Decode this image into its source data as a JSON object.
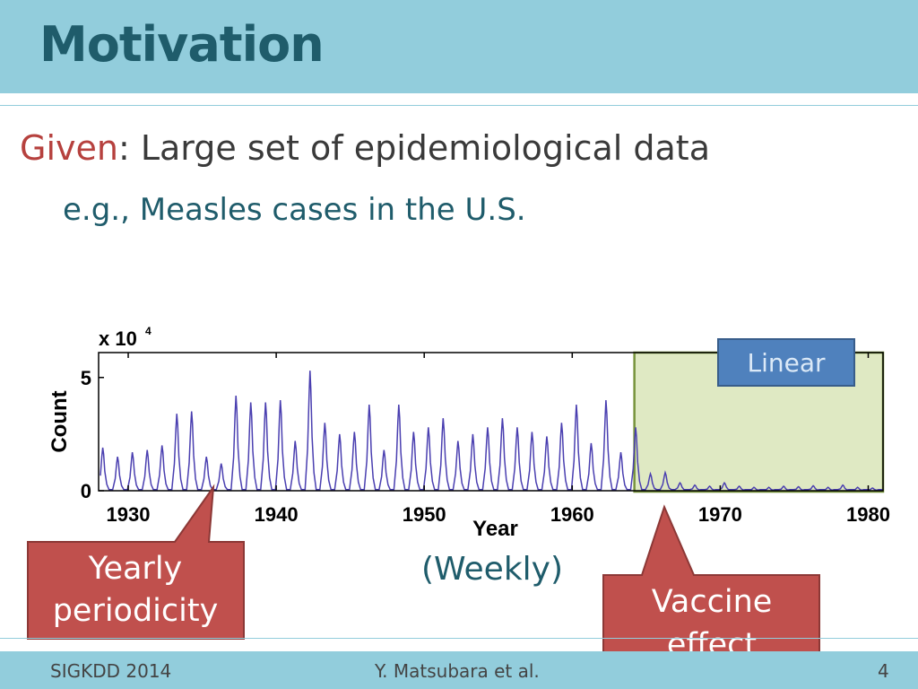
{
  "slide": {
    "title": "Motivation",
    "given_key": "Given",
    "given_text": ": Large set of epidemiological data",
    "example_text": "e.g., Measles cases in the U.S.",
    "weekly_label": "(Weekly)"
  },
  "annotations": {
    "linear_badge": "Linear",
    "yearly_line1": "Yearly",
    "yearly_line2": "periodicity",
    "vaccine_line1": "Vaccine",
    "vaccine_line2": "effect"
  },
  "footer": {
    "left": "SIGKDD 2014",
    "center": "Y. Matsubara et al.",
    "page": "4"
  },
  "colors": {
    "header": "#92cddc",
    "title": "#1f5c6b",
    "accent_red": "#b6413e",
    "series_line": "#4a3fb0",
    "highlight_fill": "#d9e5b8",
    "highlight_border": "#77933c",
    "callout_fill": "#c0504d",
    "badge_fill": "#4f81bd"
  },
  "chart_data": {
    "type": "line",
    "xlabel": "Year",
    "ylabel": "Count",
    "y_exponent_label": "x 10",
    "y_exponent_power": "4",
    "xlim": [
      1928,
      1981
    ],
    "ylim": [
      0,
      6.1
    ],
    "x_ticks": [
      1930,
      1940,
      1950,
      1960,
      1970,
      1980
    ],
    "y_ticks": [
      0,
      5
    ],
    "grid": false,
    "highlight_range": [
      1964.2,
      1981
    ],
    "series": [
      {
        "peak_years": [
          1928.0,
          1929.0,
          1930.0,
          1931.0,
          1932.0,
          1933.0,
          1934.0,
          1935.0,
          1936.0,
          1937.0,
          1938.0,
          1939.0,
          1940.0,
          1941.0,
          1942.0,
          1943.0,
          1944.0,
          1945.0,
          1946.0,
          1947.0,
          1948.0,
          1949.0,
          1950.0,
          1951.0,
          1952.0,
          1953.0,
          1954.0,
          1955.0,
          1956.0,
          1957.0,
          1958.0,
          1959.0,
          1960.0,
          1961.0,
          1962.0,
          1963.0,
          1964.0,
          1965.0,
          1966.0,
          1967.0,
          1968.0,
          1969.0,
          1970.0,
          1971.0,
          1972.0,
          1973.0,
          1974.0,
          1975.0,
          1976.0,
          1977.0,
          1978.0,
          1979.0,
          1980.0
        ],
        "peak_values": [
          1.9,
          1.5,
          1.7,
          1.8,
          2.0,
          3.4,
          3.5,
          1.5,
          1.2,
          4.2,
          3.9,
          3.9,
          4.0,
          2.2,
          5.3,
          3.0,
          2.5,
          2.6,
          3.8,
          1.8,
          3.8,
          2.6,
          2.8,
          3.2,
          2.2,
          2.5,
          2.8,
          3.2,
          2.8,
          2.6,
          2.4,
          3.0,
          3.8,
          2.1,
          4.0,
          1.7,
          2.8,
          0.75,
          0.8,
          0.35,
          0.25,
          0.2,
          0.35,
          0.2,
          0.15,
          0.15,
          0.2,
          0.18,
          0.22,
          0.15,
          0.25,
          0.15,
          0.12
        ],
        "trough_value": 0.05
      }
    ]
  }
}
